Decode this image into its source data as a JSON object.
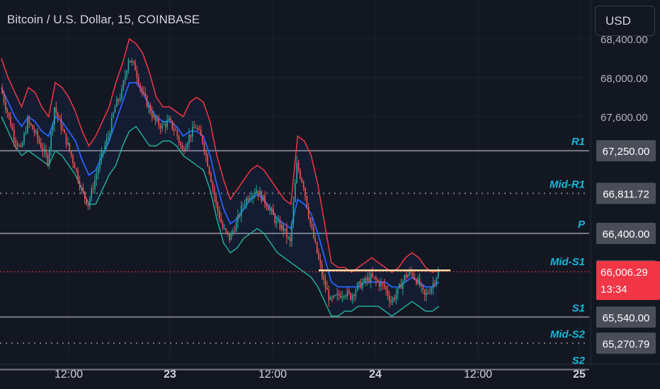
{
  "header": {
    "title": "Bitcoin / U.S. Dollar, 15, COINBASE",
    "currency_button": "USD"
  },
  "colors": {
    "background": "#131722",
    "bull": "#26a69a",
    "bear": "#ef5350",
    "upper_band": "#f23645",
    "lower_band": "#22ab94",
    "middle_band": "#2962ff",
    "level_line": "#787b86",
    "label_cyan": "#18b8d6",
    "price_tag": "#f23645",
    "trendline": "#ffe0a3"
  },
  "chart_data": {
    "type": "candlestick",
    "title": "Bitcoin / U.S. Dollar, 15, COINBASE",
    "x_axis_ticks": [
      "12:00",
      "23",
      "12:00",
      "24",
      "12:00",
      "25"
    ],
    "y_axis_ticks": [
      68400,
      68000,
      67600
    ],
    "y_axis_tick_labels": [
      "68,400.00",
      "68,000.00",
      "67,600.00"
    ],
    "ylim": [
      65100,
      68450
    ],
    "current_price": 66006.29,
    "current_price_label": "66,006.29",
    "countdown": "13:34",
    "pivot_levels": [
      {
        "name": "R1",
        "value": 67250.0,
        "label": "67,250.00",
        "style": "solid"
      },
      {
        "name": "Mid-R1",
        "value": 66811.72,
        "label": "66,811.72",
        "style": "dotted"
      },
      {
        "name": "P",
        "value": 66400.0,
        "label": "66,400.00",
        "style": "solid"
      },
      {
        "name": "Mid-S1",
        "value": 66015.52,
        "label": "66,015.52",
        "style": "none"
      },
      {
        "name": "S1",
        "value": 65540.0,
        "label": "65,540.00",
        "style": "solid"
      },
      {
        "name": "Mid-S2",
        "value": 65270.79,
        "label": "65,270.79",
        "style": "dotted"
      },
      {
        "name": "S2",
        "value": 65000.0,
        "label": "",
        "style": "solid"
      }
    ],
    "trendline": [
      66020,
      66020
    ],
    "candle_path": [
      67900,
      67650,
      67400,
      67250,
      67550,
      67450,
      67300,
      67150,
      67700,
      67500,
      67300,
      67100,
      66850,
      66700,
      66950,
      67200,
      67400,
      67700,
      67850,
      68200,
      68100,
      67850,
      67700,
      67550,
      67500,
      67550,
      67450,
      67250,
      67400,
      67500,
      67350,
      67050,
      66700,
      66450,
      66350,
      66500,
      66700,
      66800,
      66850,
      66750,
      66650,
      66500,
      66450,
      66300,
      67100,
      66900,
      66500,
      66200,
      65900,
      65700,
      65750,
      65800,
      65750,
      65850,
      65900,
      65950,
      65900,
      65850,
      65700,
      65800,
      65950,
      66000,
      65900,
      65750,
      65850,
      66006
    ],
    "upper_band": [
      68200,
      68000,
      67850,
      67700,
      67900,
      67850,
      67700,
      67600,
      67950,
      67900,
      67800,
      67650,
      67450,
      67300,
      67400,
      67550,
      67700,
      67950,
      68150,
      68400,
      68350,
      68250,
      68050,
      67800,
      67700,
      67700,
      67650,
      67600,
      67750,
      67800,
      67750,
      67550,
      67200,
      66950,
      66750,
      66850,
      66950,
      67050,
      67100,
      67050,
      66950,
      66850,
      66750,
      66700,
      67400,
      67350,
      67200,
      66900,
      66500,
      66100,
      66050,
      66050,
      66000,
      66050,
      66100,
      66150,
      66100,
      66050,
      66000,
      66050,
      66150,
      66200,
      66150,
      66050,
      66000,
      66020
    ],
    "middle_band": [
      67900,
      67750,
      67600,
      67500,
      67600,
      67550,
      67450,
      67400,
      67600,
      67550,
      67450,
      67350,
      67150,
      67000,
      67050,
      67200,
      67350,
      67550,
      67750,
      67950,
      67950,
      67850,
      67700,
      67600,
      67550,
      67550,
      67500,
      67400,
      67450,
      67450,
      67400,
      67200,
      66900,
      66650,
      66500,
      66550,
      66650,
      66750,
      66800,
      66750,
      66650,
      66550,
      66500,
      66450,
      66750,
      66700,
      66600,
      66400,
      66150,
      65900,
      65850,
      65850,
      65850,
      65850,
      65900,
      65900,
      65900,
      65900,
      65850,
      65850,
      65900,
      65950,
      65900,
      65850,
      65850,
      65900
    ],
    "lower_band": [
      67600,
      67450,
      67300,
      67200,
      67250,
      67200,
      67150,
      67100,
      67250,
      67200,
      67100,
      67000,
      66850,
      66700,
      66700,
      66850,
      67000,
      67100,
      67300,
      67450,
      67500,
      67400,
      67300,
      67300,
      67350,
      67350,
      67300,
      67200,
      67150,
      67100,
      67050,
      66850,
      66550,
      66300,
      66200,
      66250,
      66350,
      66400,
      66450,
      66400,
      66300,
      66200,
      66150,
      66100,
      66050,
      66000,
      65950,
      65850,
      65700,
      65550,
      65550,
      65600,
      65600,
      65650,
      65650,
      65650,
      65650,
      65600,
      65550,
      65600,
      65650,
      65700,
      65650,
      65600,
      65600,
      65650
    ]
  }
}
